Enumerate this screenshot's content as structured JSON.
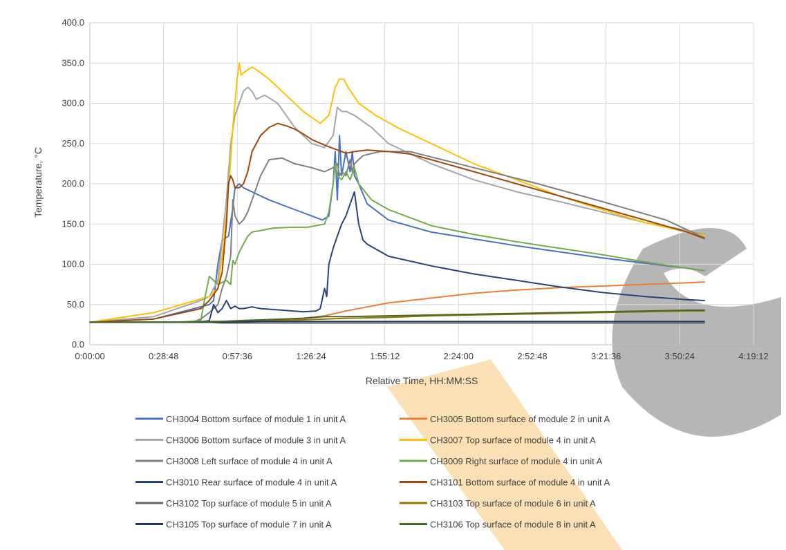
{
  "chart_data": {
    "type": "line",
    "xlabel": "Relative Time, HH:MM:SS",
    "ylabel": "Temperature, °C",
    "xlim": [
      0,
      15552
    ],
    "ylim": [
      0,
      400
    ],
    "grid": true,
    "legend_position": "bottom",
    "x_ticks": [
      {
        "value": 0,
        "label": "0:00:00"
      },
      {
        "value": 1728,
        "label": "0:28:48"
      },
      {
        "value": 3456,
        "label": "0:57:36"
      },
      {
        "value": 5184,
        "label": "1:26:24"
      },
      {
        "value": 6912,
        "label": "1:55:12"
      },
      {
        "value": 8640,
        "label": "2:24:00"
      },
      {
        "value": 10368,
        "label": "2:52:48"
      },
      {
        "value": 12096,
        "label": "3:21:36"
      },
      {
        "value": 13824,
        "label": "3:50:24"
      },
      {
        "value": 15552,
        "label": "4:19:12"
      }
    ],
    "y_ticks": [
      {
        "value": 0,
        "label": "0.0"
      },
      {
        "value": 50,
        "label": "50.0"
      },
      {
        "value": 100,
        "label": "100.0"
      },
      {
        "value": 150,
        "label": "150.0"
      },
      {
        "value": 200,
        "label": "200.0"
      },
      {
        "value": 250,
        "label": "250.0"
      },
      {
        "value": 300,
        "label": "300.0"
      },
      {
        "value": 350,
        "label": "350.0"
      },
      {
        "value": 400,
        "label": "400.0"
      }
    ],
    "series": [
      {
        "name": "CH3004 Bottom surface of module 1 in unit A",
        "color": "#4472C4",
        "x": [
          0,
          1500,
          2800,
          2900,
          3000,
          3100,
          3250,
          3350,
          3400,
          3500,
          3600,
          3800,
          4200,
          4700,
          5200,
          5450,
          5600,
          5700,
          5750,
          5800,
          5850,
          5900,
          6000,
          6100,
          6150,
          6200,
          6300,
          6500,
          7000,
          8000,
          10000,
          12000,
          14000,
          14400
        ],
        "y": [
          28,
          32,
          50,
          55,
          100,
          130,
          135,
          170,
          195,
          200,
          195,
          190,
          180,
          170,
          160,
          155,
          160,
          200,
          240,
          180,
          260,
          210,
          240,
          215,
          240,
          210,
          200,
          175,
          155,
          140,
          123,
          108,
          95,
          92
        ]
      },
      {
        "name": "CH3005 Bottom surface of module 2 in unit A",
        "color": "#ED7D31",
        "x": [
          0,
          2000,
          3000,
          4000,
          5000,
          5500,
          6000,
          6500,
          7000,
          8000,
          9000,
          10000,
          11000,
          12000,
          13000,
          14000,
          14400
        ],
        "y": [
          28,
          28,
          29,
          30,
          33,
          36,
          42,
          47,
          52,
          58,
          64,
          68,
          71,
          73,
          75,
          77,
          78
        ]
      },
      {
        "name": "CH3006 Bottom surface of module 3 in unit A",
        "color": "#A5A5A5",
        "x": [
          0,
          1500,
          2600,
          2800,
          3000,
          3100,
          3200,
          3300,
          3400,
          3500,
          3600,
          3700,
          3800,
          3900,
          4100,
          4400,
          4800,
          5200,
          5500,
          5700,
          5800,
          5900,
          6000,
          6200,
          6600,
          7000,
          8000,
          9000,
          10000,
          11000,
          12000,
          13000,
          14000,
          14400
        ],
        "y": [
          28,
          35,
          55,
          60,
          80,
          130,
          180,
          250,
          285,
          300,
          315,
          320,
          315,
          305,
          310,
          300,
          270,
          250,
          245,
          260,
          295,
          290,
          290,
          285,
          270,
          250,
          225,
          205,
          190,
          178,
          165,
          152,
          142,
          137
        ]
      },
      {
        "name": "CH3007 Top surface of module 4 in unit A",
        "color": "#FFC000",
        "x": [
          0,
          1500,
          2800,
          3000,
          3100,
          3200,
          3300,
          3350,
          3400,
          3450,
          3500,
          3550,
          3650,
          3800,
          3950,
          4200,
          4600,
          5000,
          5400,
          5600,
          5750,
          5850,
          5950,
          6050,
          6300,
          6700,
          7200,
          8000,
          9000,
          10000,
          11000,
          12000,
          13000,
          14000,
          14400
        ],
        "y": [
          28,
          40,
          60,
          70,
          110,
          160,
          230,
          270,
          300,
          330,
          350,
          335,
          340,
          345,
          340,
          330,
          310,
          290,
          275,
          285,
          320,
          330,
          330,
          320,
          300,
          285,
          270,
          250,
          225,
          205,
          185,
          168,
          152,
          140,
          136
        ]
      },
      {
        "name": "CH3008 Left surface of module 4 in unit A",
        "color": "#7F7F7F",
        "x": [
          0,
          2400,
          2600,
          2800,
          3000,
          3100,
          3200,
          3300,
          3350,
          3400,
          3500,
          3600,
          3700,
          3800,
          4000,
          4200,
          4500,
          4800,
          5200,
          5500,
          5700,
          5800,
          5850,
          5900,
          6000,
          6100,
          6150,
          6200,
          6400,
          6800,
          7500,
          9000,
          10500,
          12000,
          13500,
          14400
        ],
        "y": [
          28,
          28,
          32,
          40,
          50,
          70,
          85,
          110,
          180,
          160,
          150,
          155,
          165,
          180,
          210,
          230,
          232,
          225,
          220,
          215,
          220,
          225,
          210,
          215,
          210,
          230,
          215,
          225,
          235,
          240,
          240,
          220,
          200,
          178,
          155,
          133
        ]
      },
      {
        "name": "CH3009 Right surface of module 4 in unit A",
        "color": "#70AD47",
        "x": [
          0,
          2000,
          2600,
          2700,
          2800,
          3000,
          3200,
          3300,
          3350,
          3400,
          3500,
          3600,
          3700,
          3800,
          4000,
          4300,
          4700,
          5100,
          5500,
          5600,
          5700,
          5750,
          5800,
          5900,
          6000,
          6100,
          6200,
          6300,
          6600,
          7000,
          8000,
          9000,
          10000,
          11000,
          12000,
          13000,
          14000,
          14400
        ],
        "y": [
          28,
          28,
          30,
          60,
          85,
          75,
          80,
          75,
          105,
          100,
          115,
          125,
          135,
          140,
          142,
          145,
          146,
          146,
          150,
          165,
          200,
          225,
          210,
          205,
          215,
          205,
          220,
          200,
          180,
          168,
          148,
          137,
          128,
          120,
          112,
          103,
          95,
          92
        ]
      },
      {
        "name": "CH3010 Rear surface of module 4 in unit A",
        "color": "#264478",
        "x": [
          0,
          2500,
          2800,
          2900,
          3000,
          3100,
          3200,
          3300,
          3400,
          3500,
          3600,
          3700,
          3800,
          4000,
          4500,
          5000,
          5300,
          5400,
          5500,
          5550,
          5600,
          5700,
          5800,
          5900,
          6000,
          6100,
          6200,
          6250,
          6300,
          6400,
          6500,
          7000,
          8000,
          9000,
          10000,
          11000,
          12000,
          13000,
          14000,
          14400
        ],
        "y": [
          28,
          28,
          30,
          50,
          40,
          45,
          55,
          45,
          48,
          45,
          45,
          46,
          47,
          45,
          43,
          41,
          42,
          45,
          70,
          60,
          100,
          120,
          135,
          150,
          160,
          175,
          190,
          170,
          150,
          130,
          125,
          110,
          98,
          88,
          80,
          72,
          65,
          60,
          56,
          55
        ]
      },
      {
        "name": "CH3101 Bottom surface of module 4 in unit A",
        "color": "#9E480E",
        "x": [
          0,
          1500,
          2600,
          2800,
          3000,
          3100,
          3200,
          3250,
          3300,
          3350,
          3400,
          3500,
          3600,
          3700,
          3800,
          4000,
          4200,
          4400,
          4600,
          4800,
          5000,
          5200,
          5500,
          5800,
          6000,
          6200,
          6500,
          7000,
          7500,
          8000,
          9000,
          10000,
          11000,
          12000,
          13000,
          14000,
          14400
        ],
        "y": [
          28,
          32,
          45,
          55,
          70,
          90,
          150,
          200,
          210,
          205,
          195,
          195,
          200,
          215,
          240,
          260,
          270,
          275,
          272,
          268,
          262,
          255,
          248,
          242,
          238,
          240,
          242,
          240,
          237,
          230,
          215,
          200,
          185,
          170,
          155,
          140,
          132
        ]
      },
      {
        "name": "CH3102 Top surface of module 5 in unit A",
        "color": "#636363",
        "x": [
          0,
          2500,
          2800,
          3100,
          4000,
          5000,
          6000,
          7000,
          8000,
          9000,
          10000,
          11000,
          12000,
          13000,
          14000,
          14400
        ],
        "y": [
          28,
          28,
          28,
          27,
          27,
          27,
          27,
          27,
          27,
          27,
          27,
          27,
          27,
          27,
          27,
          27
        ]
      },
      {
        "name": "CH3103 Top surface of module 6 in unit A",
        "color": "#997300",
        "x": [
          0,
          2000,
          3000,
          4000,
          5000,
          6000,
          7000,
          8000,
          9000,
          10000,
          11000,
          12000,
          13000,
          14000,
          14400
        ],
        "y": [
          28,
          28,
          29,
          30,
          31,
          33,
          34,
          36,
          37,
          38,
          39,
          40,
          41,
          42,
          42
        ]
      },
      {
        "name": "CH3105 Top surface of module 7 in unit A",
        "color": "#203864",
        "x": [
          0,
          2000,
          3000,
          4000,
          5000,
          6000,
          7000,
          8000,
          9000,
          10000,
          11000,
          12000,
          13000,
          14000,
          14400
        ],
        "y": [
          28,
          28,
          28,
          29,
          29,
          29,
          29,
          29,
          29,
          29,
          29,
          29,
          29,
          29,
          29
        ]
      },
      {
        "name": "CH3106 Top surface of module 8 in unit A",
        "color": "#43682B",
        "x": [
          0,
          2000,
          3000,
          4000,
          5000,
          5500,
          6000,
          7000,
          8000,
          9000,
          10000,
          11000,
          12000,
          13000,
          14000,
          14400
        ],
        "y": [
          28,
          28,
          29,
          31,
          33,
          35,
          35,
          36,
          37,
          38,
          39,
          40,
          41,
          42,
          43,
          43
        ]
      }
    ]
  }
}
